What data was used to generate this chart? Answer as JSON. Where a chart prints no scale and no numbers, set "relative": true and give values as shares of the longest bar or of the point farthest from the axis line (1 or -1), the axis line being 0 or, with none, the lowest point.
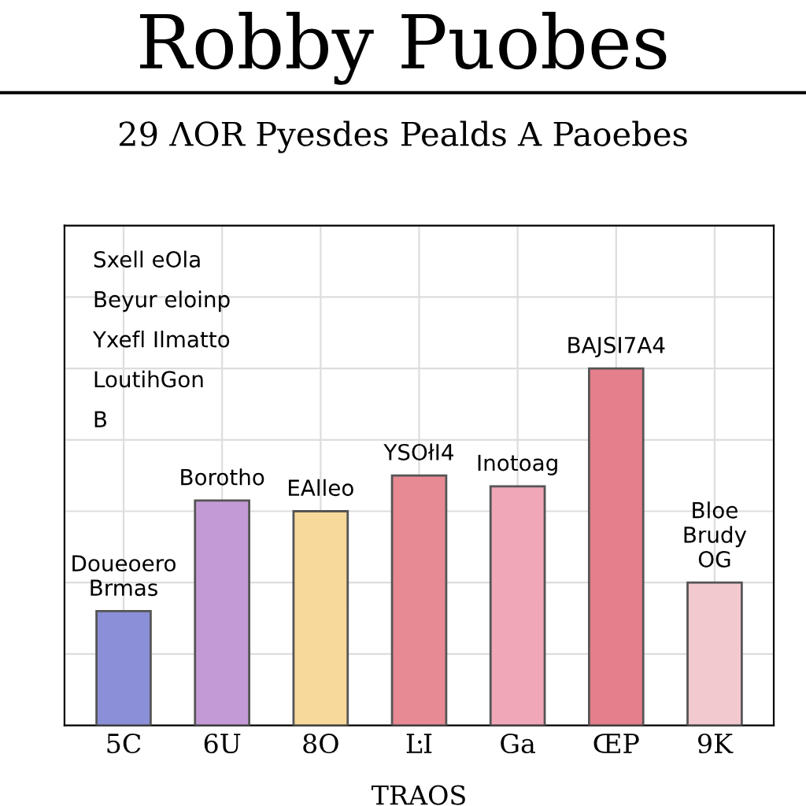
{
  "chart_data": {
    "type": "bar",
    "title": "Robby Puobes",
    "subtitle": "29 ΛOR Pyesdes Pealds A Paoebes",
    "xlabel": "TRAOS",
    "categories": [
      "5C",
      "6U",
      "8O",
      "ĿI",
      "Ga",
      "ŒP",
      "9K"
    ],
    "values": [
      0.32,
      0.63,
      0.6,
      0.7,
      0.67,
      1,
      0.4
    ],
    "colors": [
      "#8a8fd8",
      "#c39ad6",
      "#f7d99b",
      "#e88a94",
      "#f0a7b8",
      "#e57f8b",
      "#f2c9cf"
    ],
    "relative": true,
    "grid": true,
    "tick_labels": "x",
    "annotations": [
      "Sxell eOla",
      "Beyur eloinp",
      "Yxefl Ilmatto",
      "LoutihGon",
      "B",
      {
        "text": "Doueoero\nBrmas",
        "x": "5C",
        "y": 0.32
      },
      {
        "text": "Borotho",
        "x": "6U",
        "y": 0.63
      },
      {
        "text": "EAlleo",
        "x": "8O",
        "y": 0.6
      },
      {
        "text": "YSOłI4",
        "x": "ĿI",
        "y": 0.7
      },
      {
        "text": "Inotoag",
        "x": "Ga",
        "y": 0.67
      },
      {
        "text": "BAJSI7A4",
        "x": "ŒP",
        "y": 1
      },
      {
        "text": "Bloe\nBrudy\nOG",
        "x": "9K",
        "y": 0.4
      }
    ]
  }
}
